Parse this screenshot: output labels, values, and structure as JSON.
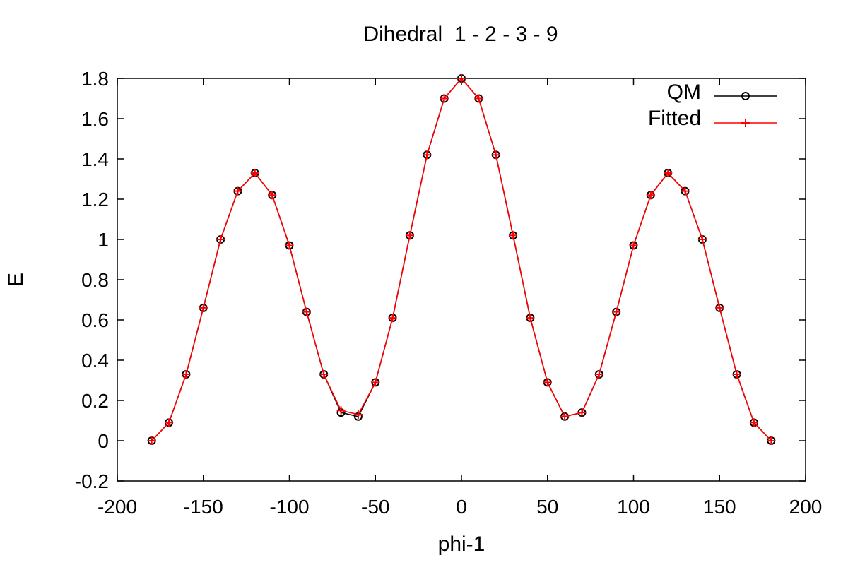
{
  "chart_data": {
    "type": "line",
    "title": "Dihedral  1 - 2 - 3 - 9",
    "xlabel": "phi-1",
    "ylabel": "E",
    "xlim": [
      -200,
      200
    ],
    "ylim": [
      -0.2,
      1.8
    ],
    "xticks": [
      -200,
      -150,
      -100,
      -50,
      0,
      50,
      100,
      150,
      200
    ],
    "yticks": [
      -0.2,
      0,
      0.2,
      0.4,
      0.6,
      0.8,
      1,
      1.2,
      1.4,
      1.6,
      1.8
    ],
    "grid": false,
    "legend_position": "top-right",
    "x": [
      -180,
      -170,
      -160,
      -150,
      -140,
      -130,
      -120,
      -110,
      -100,
      -90,
      -80,
      -70,
      -60,
      -50,
      -40,
      -30,
      -20,
      -10,
      0,
      10,
      20,
      30,
      40,
      50,
      60,
      70,
      80,
      90,
      100,
      110,
      120,
      130,
      140,
      150,
      160,
      170,
      180
    ],
    "series": [
      {
        "name": "QM",
        "color": "#000000",
        "marker": "circle",
        "values": [
          0.0,
          0.09,
          0.33,
          0.66,
          1.0,
          1.24,
          1.33,
          1.22,
          0.97,
          0.64,
          0.33,
          0.14,
          0.12,
          0.29,
          0.61,
          1.02,
          1.42,
          1.7,
          1.8,
          1.7,
          1.42,
          1.02,
          0.61,
          0.29,
          0.12,
          0.14,
          0.33,
          0.64,
          0.97,
          1.22,
          1.33,
          1.24,
          1.0,
          0.66,
          0.33,
          0.09,
          0.0
        ]
      },
      {
        "name": "Fitted",
        "color": "#ff0000",
        "marker": "plus",
        "values": [
          0.0,
          0.09,
          0.33,
          0.66,
          1.0,
          1.24,
          1.33,
          1.22,
          0.97,
          0.64,
          0.33,
          0.15,
          0.13,
          0.29,
          0.61,
          1.02,
          1.42,
          1.7,
          1.8,
          1.7,
          1.42,
          1.02,
          0.61,
          0.29,
          0.12,
          0.14,
          0.33,
          0.64,
          0.97,
          1.22,
          1.33,
          1.24,
          1.0,
          0.66,
          0.33,
          0.09,
          0.0
        ]
      }
    ]
  }
}
